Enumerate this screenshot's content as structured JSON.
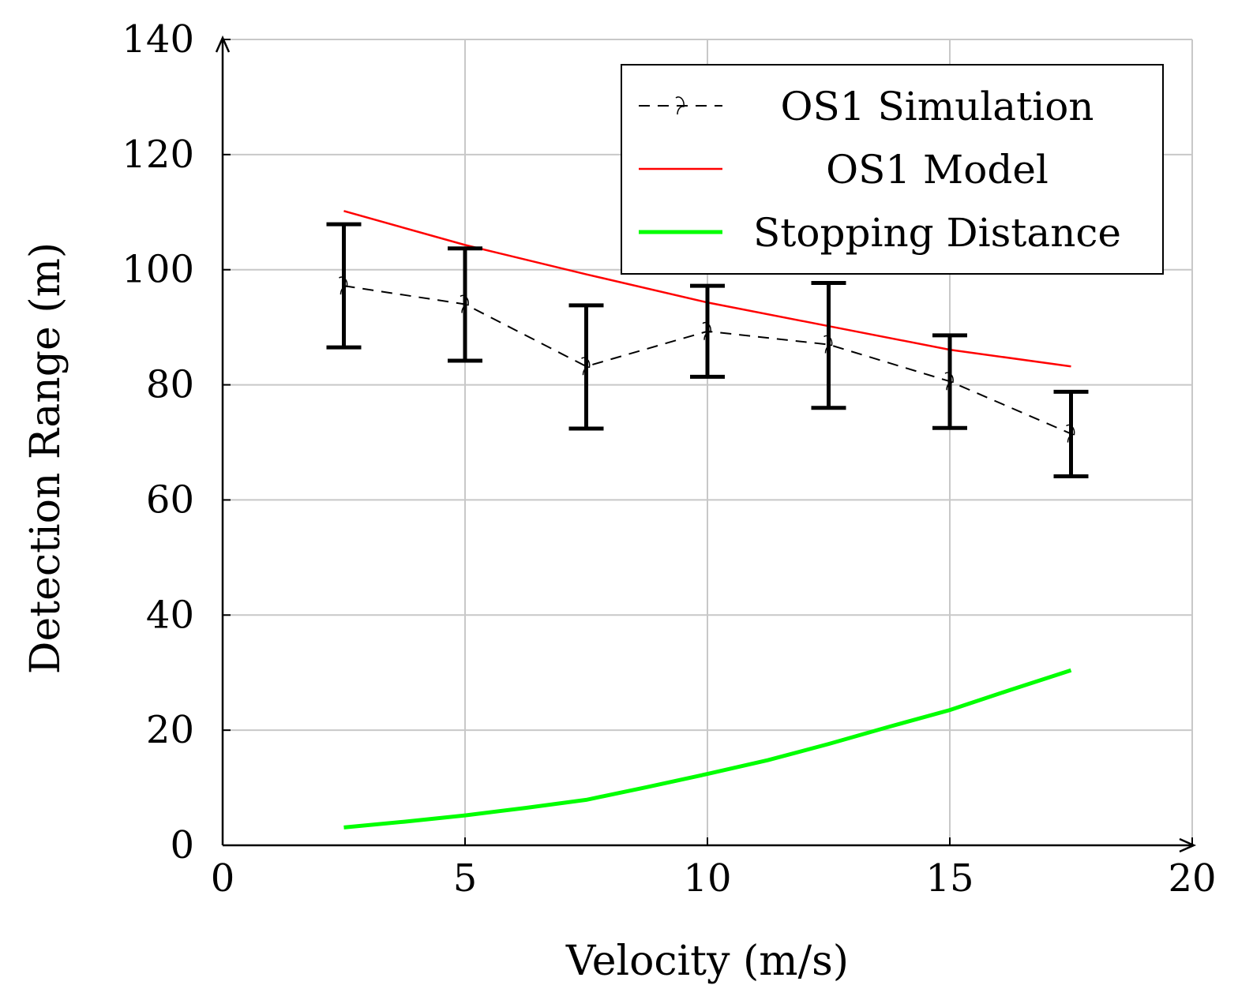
{
  "chart_data": {
    "type": "line",
    "title": "",
    "xlabel": "Velocity (m/s)",
    "ylabel": "Detection Range (m)",
    "xlim": [
      0,
      20
    ],
    "ylim": [
      0,
      140
    ],
    "xticks": [
      "0",
      "5",
      "10",
      "15",
      "20"
    ],
    "yticks": [
      "0",
      "20",
      "40",
      "60",
      "80",
      "100",
      "120",
      "140"
    ],
    "grid": true,
    "legend_position": "top-right",
    "series": [
      {
        "name": "OS1 Simulation",
        "style": "dashed-with-error-bars",
        "color": "#000000",
        "x": [
          2.5,
          5,
          7.5,
          10,
          12.5,
          15,
          17.5
        ],
        "y": [
          97.2,
          94,
          83.2,
          89.3,
          87,
          80.6,
          71.5
        ],
        "err_low": [
          86.5,
          84.2,
          72.4,
          81.4,
          76,
          72.5,
          64.1
        ],
        "err_high": [
          107.9,
          103.7,
          93.8,
          97.2,
          97.7,
          88.6,
          78.8
        ]
      },
      {
        "name": "OS1 Model",
        "style": "solid",
        "color": "#ff0000",
        "x": [
          2.5,
          5,
          7.5,
          10,
          12.5,
          15,
          17.5
        ],
        "y": [
          110.2,
          104.3,
          99.2,
          94.3,
          90.2,
          86.1,
          83.2
        ]
      },
      {
        "name": "Stopping Distance",
        "style": "solid-thick",
        "color": "#00ff00",
        "x": [
          2.5,
          3.75,
          5,
          6.25,
          7.5,
          8.75,
          10,
          11.25,
          12.5,
          13.75,
          15,
          16.25,
          17.5
        ],
        "y": [
          3.1,
          4.1,
          5.2,
          6.5,
          7.9,
          10.1,
          12.4,
          14.8,
          17.6,
          20.6,
          23.5,
          27.0,
          30.4
        ]
      }
    ]
  }
}
